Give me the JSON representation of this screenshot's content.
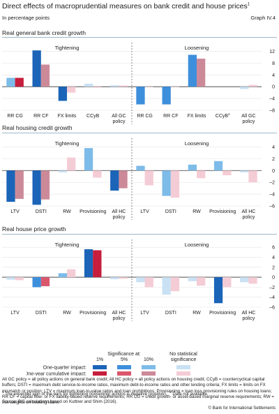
{
  "header": {
    "title": "Direct effects of macroprudential measures on bank credit and house prices",
    "title_note": "1",
    "units": "In percentage points",
    "graph_id": "Graph IV.4"
  },
  "colors": {
    "impact_1pct": "#1b64b8",
    "impact_5pct": "#3d8fdc",
    "impact_10pct": "#7dbbe8",
    "impact_nss": "#c9e1f3",
    "cum_1pct": "#c61e3c",
    "cum_5pct": "#d9566c",
    "cum_10pct": "#cc8a99",
    "cum_nss": "#f4ccd5"
  },
  "chart_data": [
    {
      "type": "bar",
      "title": "Real general bank credit growth",
      "ylim": [
        -8,
        14
      ],
      "yticks": [
        -8,
        -4,
        0,
        4,
        8,
        12
      ],
      "yticks_shown": [
        "–8",
        "–4",
        "0",
        "4",
        "8",
        "12"
      ],
      "sections": [
        "Tightening",
        "Loosening"
      ],
      "categories": [
        "RR CG",
        "RR CF",
        "FX limits",
        "CCyB",
        "All GC policy",
        "RR CG",
        "RR CF",
        "FX limits",
        "CCyB",
        "All GC policy"
      ],
      "category_notes": [
        "",
        "",
        "",
        "",
        "",
        "",
        "",
        "",
        "2",
        ""
      ],
      "series": [
        {
          "name": "One-quarter impact",
          "values": [
            3.0,
            12.3,
            -4.8,
            1.0,
            0.5,
            -6.0,
            -6.0,
            10.8,
            null,
            -0.8
          ],
          "significance": [
            "10",
            "1",
            "1",
            "nss",
            "nss",
            "5",
            "5",
            "5",
            "na",
            "nss"
          ]
        },
        {
          "name": "One-year cumulative impact",
          "values": [
            3.0,
            7.5,
            -2.0,
            -0.3,
            0.4,
            0.0,
            0.0,
            9.5,
            null,
            0.6
          ],
          "significance": [
            "1",
            "10",
            "nss",
            "nss",
            "nss",
            "nss",
            "nss",
            "10",
            "na",
            "nss"
          ]
        }
      ]
    },
    {
      "type": "bar",
      "title": "Real housing credit growth",
      "ylim": [
        -6,
        5
      ],
      "yticks": [
        -6,
        -4,
        -2,
        0,
        2,
        4
      ],
      "yticks_shown": [
        "–6",
        "–4",
        "–2",
        "0",
        "2",
        "4"
      ],
      "sections": [
        "Tightening",
        "Loosening"
      ],
      "categories": [
        "LTV",
        "DSTI",
        "RW",
        "Provisioning",
        "All HC policy",
        "LTV",
        "DSTI",
        "RW",
        "Provisioning",
        "All HC policy"
      ],
      "series": [
        {
          "name": "One-quarter impact",
          "values": [
            -5.3,
            -5.8,
            -0.3,
            3.8,
            -3.4,
            0.8,
            -4.3,
            1.0,
            1.6,
            -0.3
          ],
          "significance": [
            "1",
            "1",
            "nss",
            "10",
            "1",
            "10",
            "10",
            "10",
            "10",
            "nss"
          ]
        },
        {
          "name": "One-year cumulative impact",
          "values": [
            -4.8,
            -4.9,
            2.2,
            -1.2,
            -3.0,
            -2.5,
            -4.6,
            -1.3,
            -0.8,
            -2.0
          ],
          "significance": [
            "10",
            "10",
            "nss",
            "nss",
            "10",
            "nss",
            "nss",
            "nss",
            "nss",
            "nss"
          ]
        }
      ]
    },
    {
      "type": "bar",
      "title": "Real house price growth",
      "ylim": [
        -6,
        7
      ],
      "yticks": [
        -6,
        -4,
        -2,
        0,
        2,
        4,
        6
      ],
      "yticks_shown": [
        "–6",
        "–4",
        "–2",
        "0",
        "2",
        "4",
        "6"
      ],
      "sections": [
        "Tightening",
        "Loosening"
      ],
      "categories": [
        "LTV",
        "DSTI",
        "RW",
        "Provisioning",
        "All HC policy",
        "LTV",
        "DSTI",
        "RW",
        "Provisioning",
        "All HC policy"
      ],
      "series": [
        {
          "name": "One-quarter impact",
          "values": [
            -0.5,
            -2.0,
            0.8,
            5.6,
            -0.4,
            -1.0,
            -3.5,
            -0.8,
            -5.2,
            -1.0
          ],
          "significance": [
            "nss",
            "5",
            "10",
            "1",
            "nss",
            "nss",
            "nss",
            "nss",
            "1",
            "nss"
          ]
        },
        {
          "name": "One-year cumulative impact",
          "values": [
            -0.6,
            -1.8,
            1.6,
            5.4,
            -0.3,
            -2.0,
            -2.8,
            -1.7,
            -2.0,
            -1.3
          ],
          "significance": [
            "nss",
            "5",
            "nss",
            "1",
            "nss",
            "nss",
            "nss",
            "nss",
            "nss",
            "nss"
          ]
        }
      ]
    }
  ],
  "legend": {
    "significance_title": "Significance at:",
    "levels": [
      "1%",
      "5%",
      "10%"
    ],
    "nss_label": "No statistical significance",
    "rows": [
      "One-quarter impact:",
      "One-year cumulative impact:"
    ]
  },
  "footnotes": {
    "definitions": "All GC policy = all policy actions on general bank credit; All HC policy = all policy actions on housing credit; CCyB = countercyclical capital buffers; DSTI = maximum debt service-to-income ratios, maximum debt-to-income ratios and other lending criteria; FX limits = limits on FX mismatch or position; LTV = maximum loan-to-value ratios and loan prohibitions; Provisioning = loan loss provisioning rules on housing loans; RR CF = capital flow- or FX liability-based reserve requirements; RR CG = credit growth- or asset-based marginal reserve requirements; RW = risk weights on housing loans.",
    "note1": "The expected sign of the bars for tightening (loosening) actions is negative (positive).",
    "note2": "Data not available.",
    "source": "Source: BIS calculations based on Kuttner and Shim (2016).",
    "copyright": "© Bank for International Settlements"
  }
}
